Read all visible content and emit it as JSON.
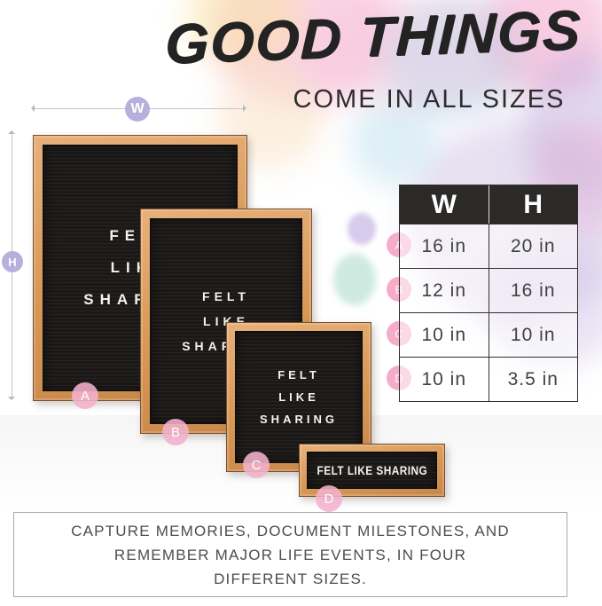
{
  "title": {
    "main": "GOOD THINGS",
    "subtitle": "COME IN ALL SIZES"
  },
  "dimensions": {
    "width_label": "W",
    "height_label": "H"
  },
  "boards": [
    {
      "label": "A",
      "text_lines": [
        "FELT",
        "LIKE",
        "SHARING"
      ]
    },
    {
      "label": "B",
      "text_lines": [
        "FELT",
        "LIKE",
        "SHARING"
      ]
    },
    {
      "label": "C",
      "text_lines": [
        "FELT",
        "LIKE",
        "SHARING"
      ]
    },
    {
      "label": "D",
      "text_lines": [
        "FELT LIKE SHARING"
      ]
    }
  ],
  "size_table": {
    "columns": [
      "W",
      "H"
    ],
    "rows": [
      {
        "label": "A",
        "w": "16 in",
        "h": "20 in"
      },
      {
        "label": "B",
        "w": "12 in",
        "h": "16 in"
      },
      {
        "label": "C",
        "w": "10 in",
        "h": "10 in"
      },
      {
        "label": "D",
        "w": "10 in",
        "h": "3.5 in"
      }
    ]
  },
  "caption": {
    "lines": [
      "CAPTURE MEMORIES, DOCUMENT MILESTONES, AND",
      "REMEMBER MAJOR LIFE EVENTS, IN FOUR",
      "DIFFERENT SIZES."
    ]
  },
  "colors": {
    "accent_pink": "#f3b2cd",
    "accent_lavender": "#b1a9d9",
    "wood": "#d79754",
    "felt": "#1b1918",
    "table_header": "#2b2a28"
  }
}
